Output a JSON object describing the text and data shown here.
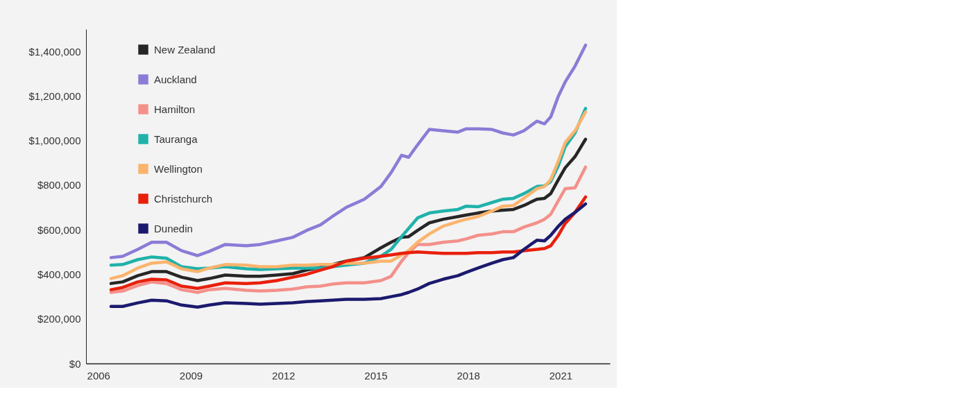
{
  "chart_data": {
    "type": "line",
    "x": [
      2006.41,
      2006.79,
      2007.28,
      2007.73,
      2008.21,
      2008.7,
      2009.22,
      2009.6,
      2010.12,
      2010.8,
      2011.25,
      2011.79,
      2012.31,
      2012.76,
      2013.21,
      2013.59,
      2014.04,
      2014.63,
      2015.17,
      2015.5,
      2015.84,
      2016.07,
      2016.36,
      2016.74,
      2017.19,
      2017.67,
      2017.94,
      2018.32,
      2018.77,
      2019.13,
      2019.47,
      2019.81,
      2020.23,
      2020.48,
      2020.68,
      2020.93,
      2021.15,
      2021.47,
      2021.81
    ],
    "series": [
      {
        "name": "New Zealand",
        "color": "#262626",
        "values": [
          359000,
          366000,
          394000,
          412000,
          412000,
          387000,
          372000,
          381000,
          397000,
          391000,
          391000,
          397000,
          403000,
          419000,
          431000,
          444000,
          459000,
          475000,
          519000,
          544000,
          566000,
          569000,
          597000,
          631000,
          647000,
          659000,
          666000,
          675000,
          684000,
          688000,
          691000,
          709000,
          737000,
          741000,
          762000,
          825000,
          878000,
          928000,
          1006000
        ]
      },
      {
        "name": "Auckland",
        "color": "#8c7bd6",
        "values": [
          475000,
          481000,
          512000,
          544000,
          544000,
          506000,
          484000,
          503000,
          534000,
          528000,
          534000,
          550000,
          566000,
          597000,
          622000,
          659000,
          700000,
          737000,
          794000,
          856000,
          934000,
          925000,
          981000,
          1050000,
          1044000,
          1038000,
          1053000,
          1053000,
          1050000,
          1034000,
          1025000,
          1044000,
          1087000,
          1075000,
          1106000,
          1200000,
          1263000,
          1334000,
          1428000
        ]
      },
      {
        "name": "Hamilton",
        "color": "#f4908a",
        "values": [
          319000,
          325000,
          350000,
          366000,
          359000,
          331000,
          319000,
          331000,
          337000,
          328000,
          325000,
          328000,
          334000,
          344000,
          347000,
          356000,
          362000,
          362000,
          372000,
          391000,
          459000,
          497000,
          534000,
          534000,
          544000,
          550000,
          559000,
          575000,
          581000,
          591000,
          591000,
          612000,
          631000,
          647000,
          669000,
          731000,
          784000,
          788000,
          881000
        ]
      },
      {
        "name": "Tauranga",
        "color": "#20b2aa",
        "values": [
          441000,
          444000,
          466000,
          478000,
          472000,
          434000,
          425000,
          428000,
          434000,
          425000,
          422000,
          425000,
          428000,
          428000,
          428000,
          434000,
          441000,
          450000,
          481000,
          512000,
          569000,
          606000,
          653000,
          675000,
          684000,
          691000,
          706000,
          703000,
          722000,
          737000,
          741000,
          762000,
          794000,
          797000,
          816000,
          888000,
          972000,
          1034000,
          1144000
        ]
      },
      {
        "name": "Wellington",
        "color": "#fbb46e",
        "values": [
          381000,
          394000,
          428000,
          450000,
          456000,
          425000,
          412000,
          428000,
          444000,
          441000,
          434000,
          434000,
          441000,
          441000,
          444000,
          444000,
          450000,
          450000,
          459000,
          459000,
          487000,
          506000,
          544000,
          581000,
          616000,
          637000,
          647000,
          659000,
          684000,
          706000,
          709000,
          741000,
          784000,
          794000,
          825000,
          909000,
          991000,
          1044000,
          1128000
        ]
      },
      {
        "name": "Christchurch",
        "color": "#e8200c",
        "values": [
          331000,
          341000,
          366000,
          378000,
          375000,
          347000,
          337000,
          347000,
          362000,
          359000,
          362000,
          372000,
          387000,
          400000,
          419000,
          434000,
          459000,
          472000,
          481000,
          487000,
          494000,
          497000,
          500000,
          497000,
          494000,
          494000,
          494000,
          497000,
          497000,
          500000,
          500000,
          506000,
          512000,
          516000,
          528000,
          575000,
          628000,
          678000,
          747000
        ]
      },
      {
        "name": "Dunedin",
        "color": "#1c1a6e",
        "values": [
          256000,
          256000,
          272000,
          284000,
          281000,
          262000,
          253000,
          262000,
          272000,
          269000,
          266000,
          269000,
          272000,
          278000,
          281000,
          284000,
          288000,
          288000,
          291000,
          300000,
          309000,
          319000,
          334000,
          359000,
          378000,
          394000,
          409000,
          428000,
          450000,
          466000,
          475000,
          512000,
          553000,
          550000,
          575000,
          616000,
          647000,
          678000,
          716000
        ]
      }
    ],
    "xlim": [
      2005.6,
      2022.6
    ],
    "xticks": [
      2006,
      2009,
      2012,
      2015,
      2018,
      2021
    ],
    "ylim": [
      0,
      1500000
    ],
    "yticks": [
      {
        "value": 0,
        "label": "$0"
      },
      {
        "value": 200000,
        "label": "$200,000"
      },
      {
        "value": 400000,
        "label": "$400,000"
      },
      {
        "value": 600000,
        "label": "$600,000"
      },
      {
        "value": 800000,
        "label": "$800,000"
      },
      {
        "value": 1000000,
        "label": "$1,000,000"
      },
      {
        "value": 1200000,
        "label": "$1,200,000"
      },
      {
        "value": 1400000,
        "label": "$1,400,000"
      }
    ],
    "legend": "top left",
    "grid": false,
    "line_style": "solid",
    "marker": "none"
  }
}
